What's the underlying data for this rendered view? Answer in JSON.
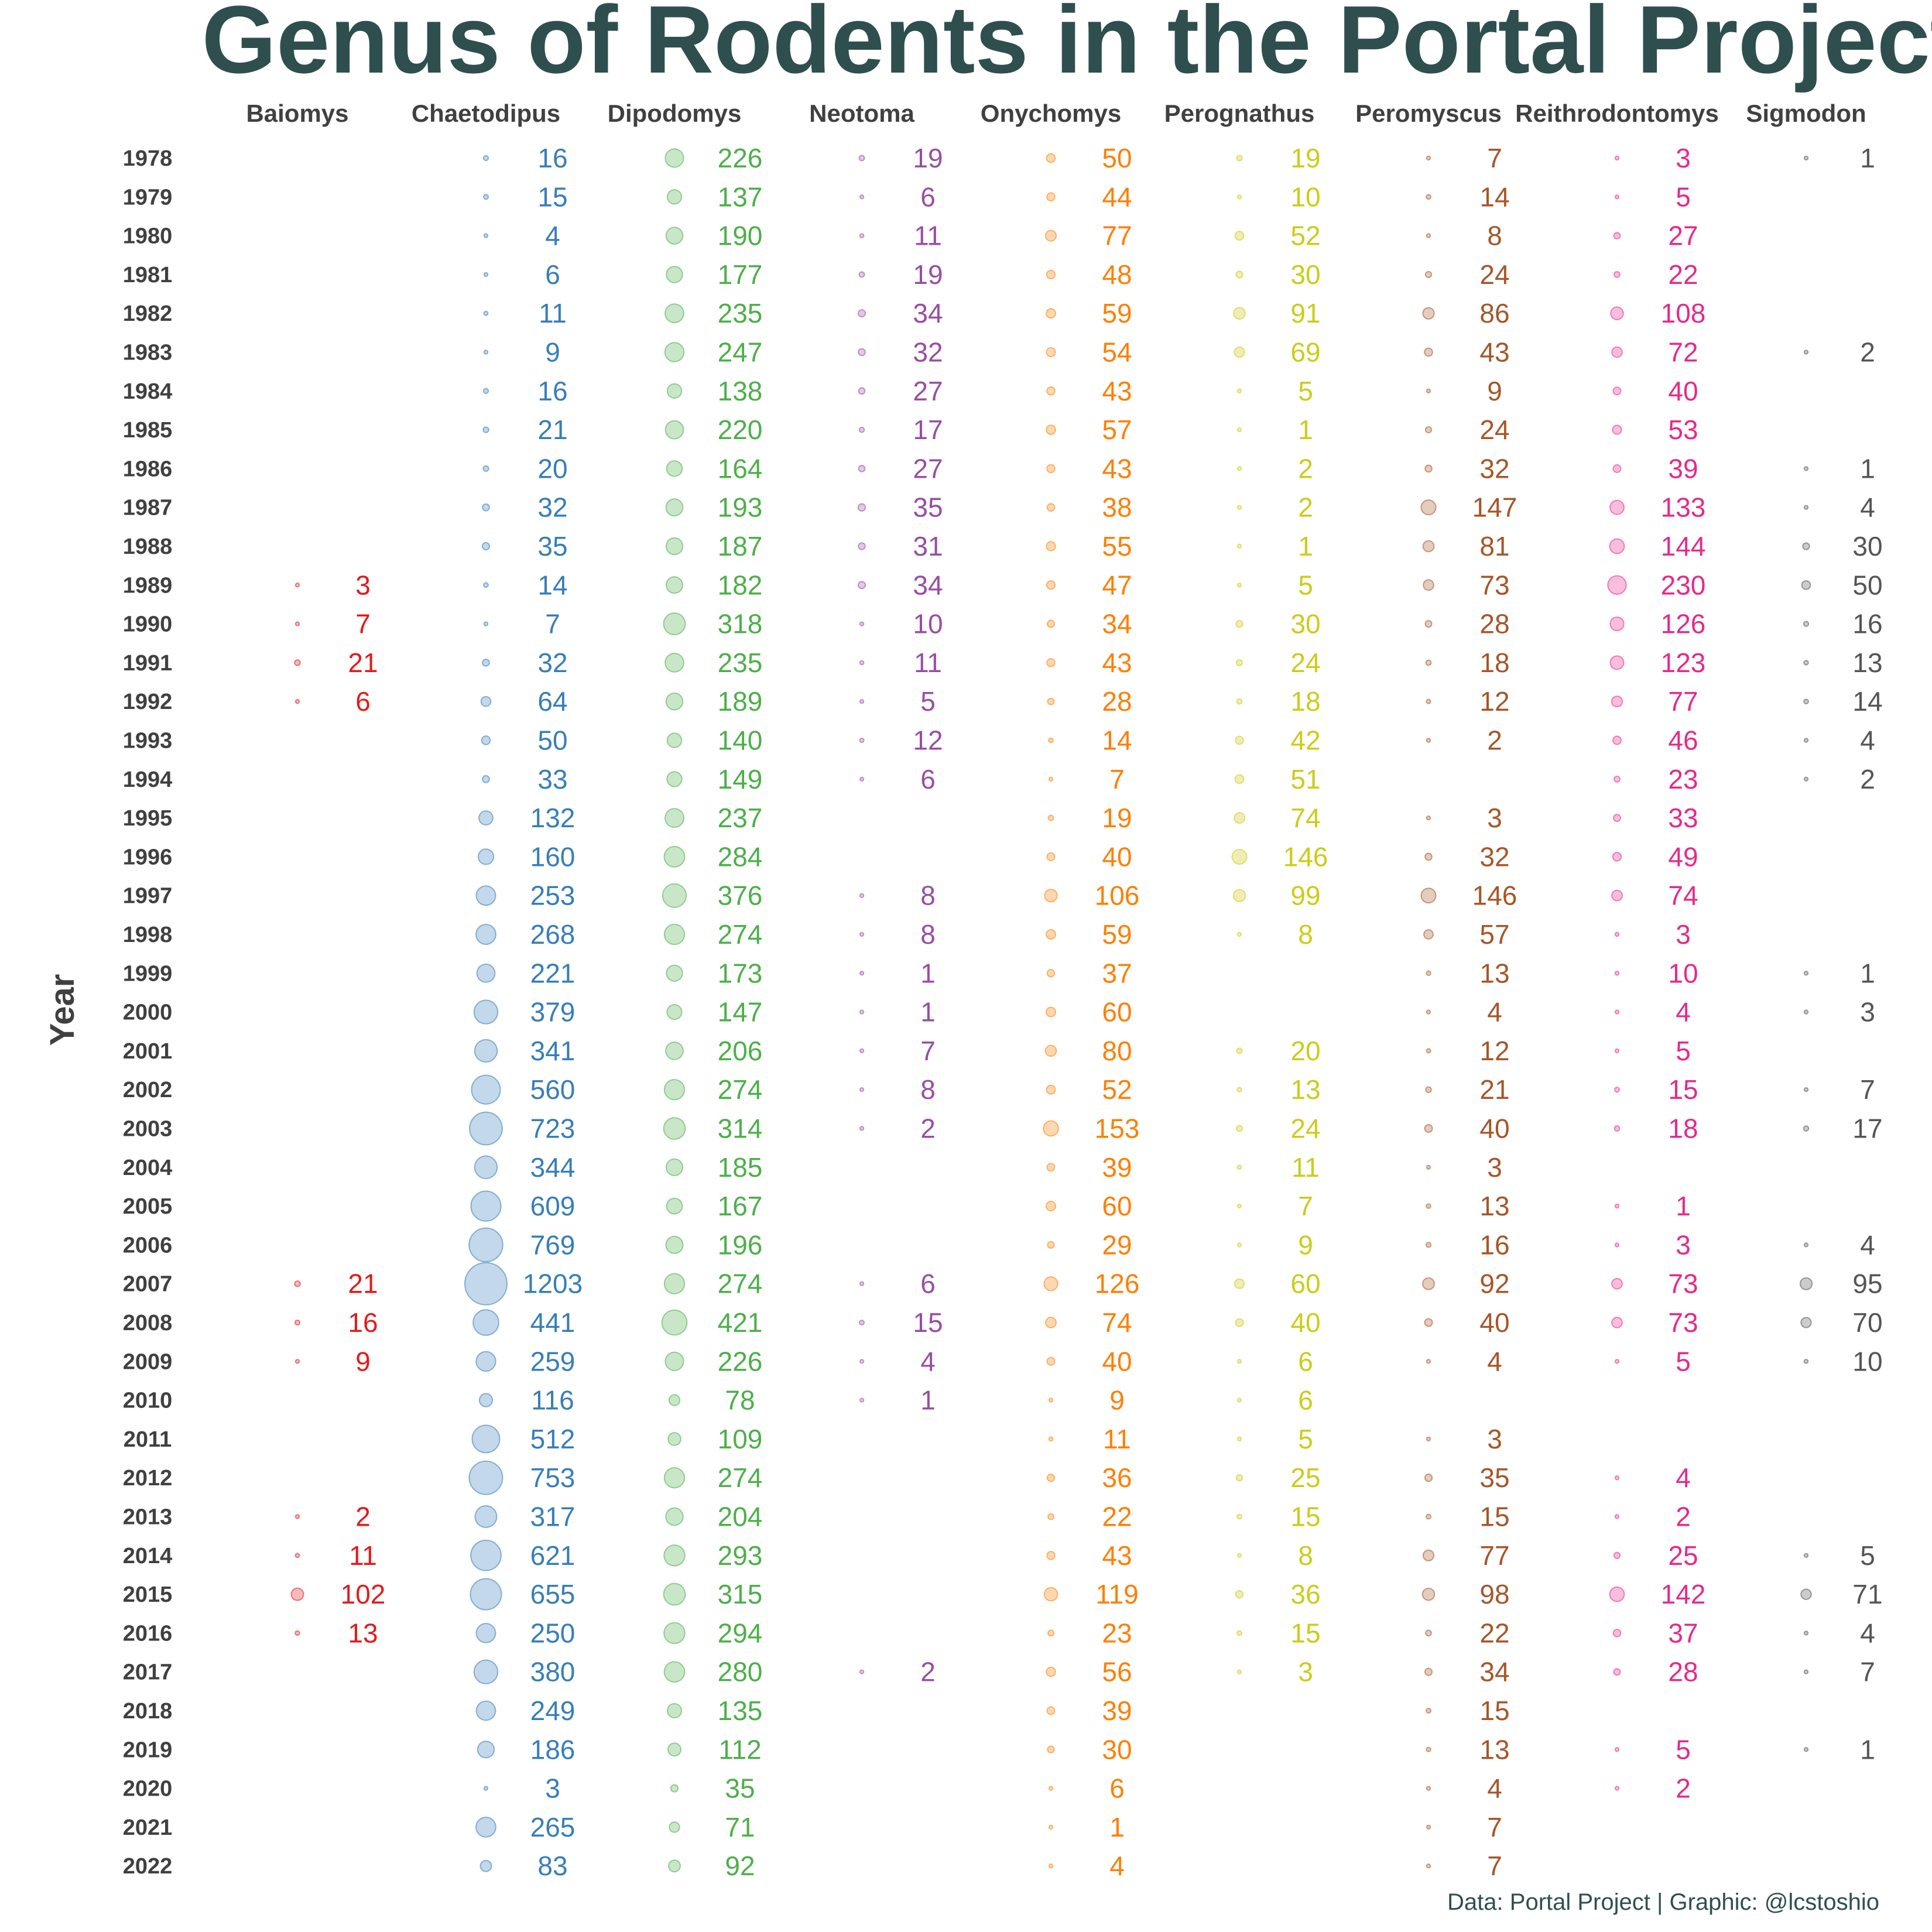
{
  "chart_data": {
    "type": "table",
    "title": "Genus of Rodents in the Portal Project",
    "ylabel": "Year",
    "caption": "Data: Portal Project | Graphic: @lcstoshio",
    "years": [
      1978,
      1979,
      1980,
      1981,
      1982,
      1983,
      1984,
      1985,
      1986,
      1987,
      1988,
      1989,
      1990,
      1991,
      1992,
      1993,
      1994,
      1995,
      1996,
      1997,
      1998,
      1999,
      2000,
      2001,
      2002,
      2003,
      2004,
      2005,
      2006,
      2007,
      2008,
      2009,
      2010,
      2011,
      2012,
      2013,
      2014,
      2015,
      2016,
      2017,
      2018,
      2019,
      2020,
      2021,
      2022
    ],
    "series": [
      {
        "name": "Baiomys",
        "color": "#e41a1c",
        "values": [
          null,
          null,
          null,
          null,
          null,
          null,
          null,
          null,
          null,
          null,
          null,
          3,
          7,
          21,
          6,
          null,
          null,
          null,
          null,
          null,
          null,
          null,
          null,
          null,
          null,
          null,
          null,
          null,
          null,
          21,
          16,
          9,
          null,
          null,
          null,
          2,
          11,
          102,
          13,
          null,
          null,
          null,
          null,
          null,
          null
        ]
      },
      {
        "name": "Chaetodipus",
        "color": "#377eb8",
        "values": [
          16,
          15,
          4,
          6,
          11,
          9,
          16,
          21,
          20,
          32,
          35,
          14,
          7,
          32,
          64,
          50,
          33,
          132,
          160,
          253,
          268,
          221,
          379,
          341,
          560,
          723,
          344,
          609,
          769,
          1203,
          441,
          259,
          116,
          512,
          753,
          317,
          621,
          655,
          250,
          380,
          249,
          186,
          3,
          265,
          83
        ]
      },
      {
        "name": "Dipodomys",
        "color": "#4daf4a",
        "values": [
          226,
          137,
          190,
          177,
          235,
          247,
          138,
          220,
          164,
          193,
          187,
          182,
          318,
          235,
          189,
          140,
          149,
          237,
          284,
          376,
          274,
          173,
          147,
          206,
          274,
          314,
          185,
          167,
          196,
          274,
          421,
          226,
          78,
          109,
          274,
          204,
          293,
          315,
          294,
          280,
          135,
          112,
          35,
          71,
          92
        ]
      },
      {
        "name": "Neotoma",
        "color": "#984ea3",
        "values": [
          19,
          6,
          11,
          19,
          34,
          32,
          27,
          17,
          27,
          35,
          31,
          34,
          10,
          11,
          5,
          12,
          6,
          null,
          null,
          8,
          8,
          1,
          1,
          7,
          8,
          2,
          null,
          null,
          null,
          6,
          15,
          4,
          1,
          null,
          null,
          null,
          null,
          null,
          null,
          2,
          null,
          null,
          null,
          null,
          null
        ]
      },
      {
        "name": "Onychomys",
        "color": "#ff7f00",
        "values": [
          50,
          44,
          77,
          48,
          59,
          54,
          43,
          57,
          43,
          38,
          55,
          47,
          34,
          43,
          28,
          14,
          7,
          19,
          40,
          106,
          59,
          37,
          60,
          80,
          52,
          153,
          39,
          60,
          29,
          126,
          74,
          40,
          9,
          11,
          36,
          22,
          43,
          119,
          23,
          56,
          39,
          30,
          6,
          1,
          4
        ]
      },
      {
        "name": "Perognathus",
        "color": "#cccc1a",
        "values": [
          19,
          10,
          52,
          30,
          91,
          69,
          5,
          1,
          2,
          2,
          1,
          5,
          30,
          24,
          18,
          42,
          51,
          74,
          146,
          99,
          8,
          null,
          null,
          20,
          13,
          24,
          11,
          7,
          9,
          60,
          40,
          6,
          6,
          5,
          25,
          15,
          8,
          36,
          15,
          3,
          null,
          null,
          null,
          null,
          null
        ]
      },
      {
        "name": "Peromyscus",
        "color": "#a65628",
        "values": [
          7,
          14,
          8,
          24,
          86,
          43,
          9,
          24,
          32,
          147,
          81,
          73,
          28,
          18,
          12,
          2,
          null,
          3,
          32,
          146,
          57,
          13,
          4,
          12,
          21,
          40,
          3,
          13,
          16,
          92,
          40,
          4,
          null,
          3,
          35,
          15,
          77,
          98,
          22,
          34,
          15,
          13,
          4,
          7,
          7
        ]
      },
      {
        "name": "Reithrodontomys",
        "color": "#e7298a",
        "values": [
          3,
          5,
          27,
          22,
          108,
          72,
          40,
          53,
          39,
          133,
          144,
          230,
          126,
          123,
          77,
          46,
          23,
          33,
          49,
          74,
          3,
          10,
          4,
          5,
          15,
          18,
          null,
          1,
          3,
          73,
          73,
          5,
          null,
          null,
          4,
          2,
          25,
          142,
          37,
          28,
          null,
          5,
          2,
          null,
          null
        ]
      },
      {
        "name": "Sigmodon",
        "color": "#555555",
        "values": [
          1,
          null,
          null,
          null,
          null,
          2,
          null,
          null,
          1,
          4,
          30,
          50,
          16,
          13,
          14,
          4,
          2,
          null,
          null,
          null,
          null,
          1,
          3,
          null,
          7,
          17,
          null,
          null,
          4,
          95,
          70,
          10,
          null,
          null,
          null,
          null,
          5,
          71,
          4,
          7,
          null,
          1,
          null,
          null,
          null
        ]
      }
    ]
  }
}
